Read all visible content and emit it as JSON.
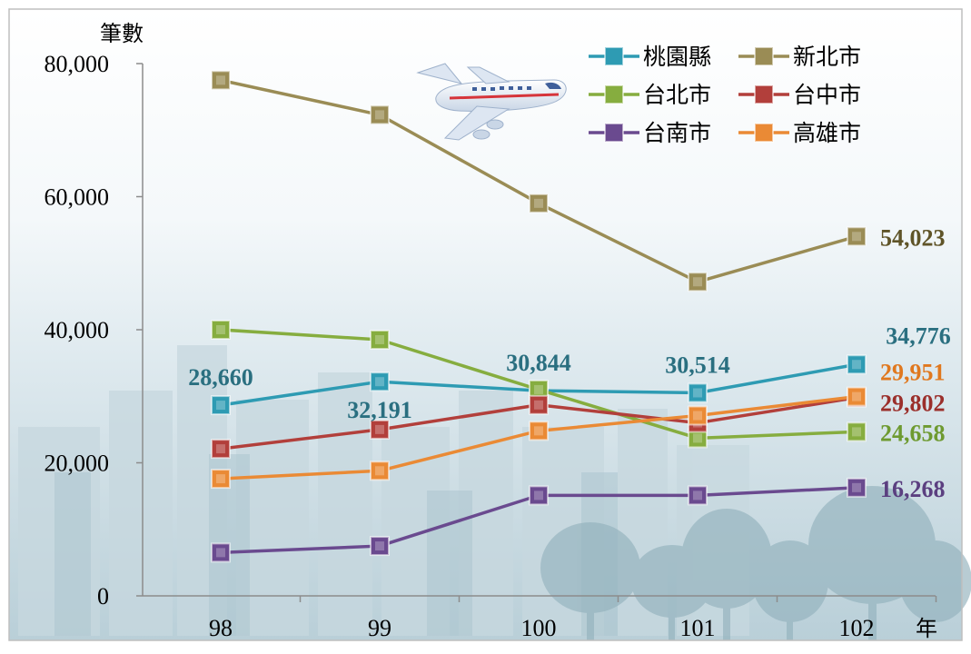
{
  "chart_data": {
    "type": "line",
    "ylabel": "筆數",
    "xlabel": "年",
    "categories": [
      "98",
      "99",
      "100",
      "101",
      "102"
    ],
    "ylim": [
      0,
      80000
    ],
    "yticks": [
      0,
      20000,
      40000,
      60000,
      80000
    ],
    "ytick_labels": [
      "0",
      "20,000",
      "40,000",
      "60,000",
      "80,000"
    ],
    "grid": false,
    "legend_position": "top-right",
    "series": [
      {
        "name": "桃園縣",
        "color": "#2e9bb3",
        "values": [
          28660,
          32191,
          30844,
          30514,
          34776
        ]
      },
      {
        "name": "新北市",
        "color": "#9a8c55",
        "values": [
          77500,
          72300,
          59000,
          47200,
          54023
        ]
      },
      {
        "name": "台北市",
        "color": "#86ad3f",
        "values": [
          40000,
          38500,
          31000,
          23700,
          24658
        ]
      },
      {
        "name": "台中市",
        "color": "#b23f3b",
        "values": [
          22100,
          25000,
          28700,
          26000,
          29802
        ]
      },
      {
        "name": "台南市",
        "color": "#6a4a8f",
        "values": [
          6500,
          7500,
          15100,
          15100,
          16268
        ]
      },
      {
        "name": "高雄市",
        "color": "#ea8a35",
        "values": [
          17600,
          18800,
          24800,
          27100,
          29951
        ]
      }
    ],
    "annotations": [
      {
        "series": "桃園縣",
        "index": 0,
        "text": "28,660",
        "color": "#2a6f80"
      },
      {
        "series": "桃園縣",
        "index": 1,
        "text": "32,191",
        "color": "#2a6f80"
      },
      {
        "series": "桃園縣",
        "index": 2,
        "text": "30,844",
        "color": "#2a6f80"
      },
      {
        "series": "桃園縣",
        "index": 3,
        "text": "30,514",
        "color": "#2a6f80"
      },
      {
        "series": "桃園縣",
        "index": 4,
        "text": "34,776",
        "color": "#2a6f80"
      },
      {
        "series": "新北市",
        "index": 4,
        "text": "54,023",
        "color": "#5f5428"
      },
      {
        "series": "高雄市",
        "index": 4,
        "text": "29,951",
        "color": "#e0781e"
      },
      {
        "series": "台中市",
        "index": 4,
        "text": "29,802",
        "color": "#9b2f2b"
      },
      {
        "series": "台北市",
        "index": 4,
        "text": "24,658",
        "color": "#6e9a30"
      },
      {
        "series": "台南市",
        "index": 4,
        "text": "16,268",
        "color": "#5b3f80"
      }
    ]
  },
  "decoration": {
    "airplane": "airplane-illustration",
    "background": "city-skyline-and-trees"
  }
}
